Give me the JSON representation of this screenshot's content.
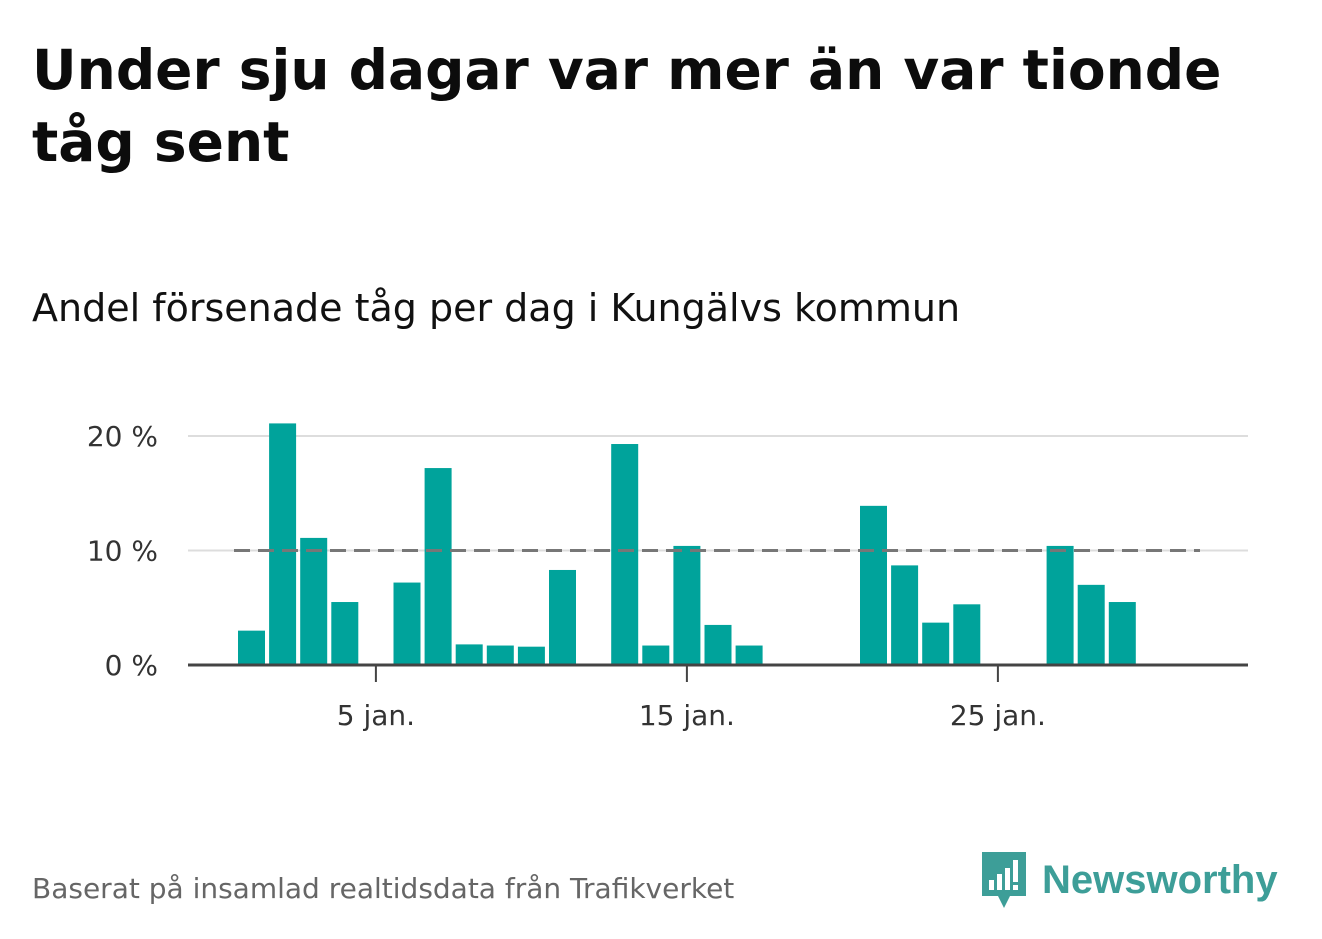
{
  "header": {
    "title": "Under sju dagar var mer än var tionde tåg sent",
    "subtitle": "Andel försenade tåg per dag i Kungälvs kommun"
  },
  "footer": {
    "source": "Baserat på insamlad realtidsdata från Trafikverket",
    "brand": "Newsworthy"
  },
  "colors": {
    "bar": "#00a39b",
    "gridline": "#dddddd",
    "baseline": "#444444",
    "reference_line": "#777777",
    "brand": "#3d9e98"
  },
  "chart_data": {
    "type": "bar",
    "x": [
      1,
      2,
      3,
      4,
      5,
      6,
      7,
      8,
      9,
      10,
      11,
      12,
      13,
      14,
      15,
      16,
      17,
      18,
      19,
      20,
      21,
      22,
      23,
      24,
      25,
      26,
      27,
      28,
      29,
      30,
      31
    ],
    "values": [
      3.0,
      21.1,
      11.1,
      5.5,
      0,
      7.2,
      17.2,
      1.8,
      1.7,
      1.6,
      8.3,
      0,
      19.3,
      1.7,
      10.4,
      3.5,
      1.7,
      0,
      0,
      0,
      13.9,
      8.7,
      3.7,
      5.3,
      0,
      0,
      10.4,
      7.0,
      5.5,
      0,
      0
    ],
    "y_ticks": [
      {
        "value": 0,
        "label": "0 %"
      },
      {
        "value": 10,
        "label": "10 %"
      },
      {
        "value": 20,
        "label": "20 %"
      }
    ],
    "x_ticks": [
      {
        "value": 5,
        "label": "5 jan."
      },
      {
        "value": 15,
        "label": "15 jan."
      },
      {
        "value": 25,
        "label": "25 jan."
      }
    ],
    "ylim": [
      0,
      20
    ],
    "reference_line": 10,
    "grid": true
  }
}
